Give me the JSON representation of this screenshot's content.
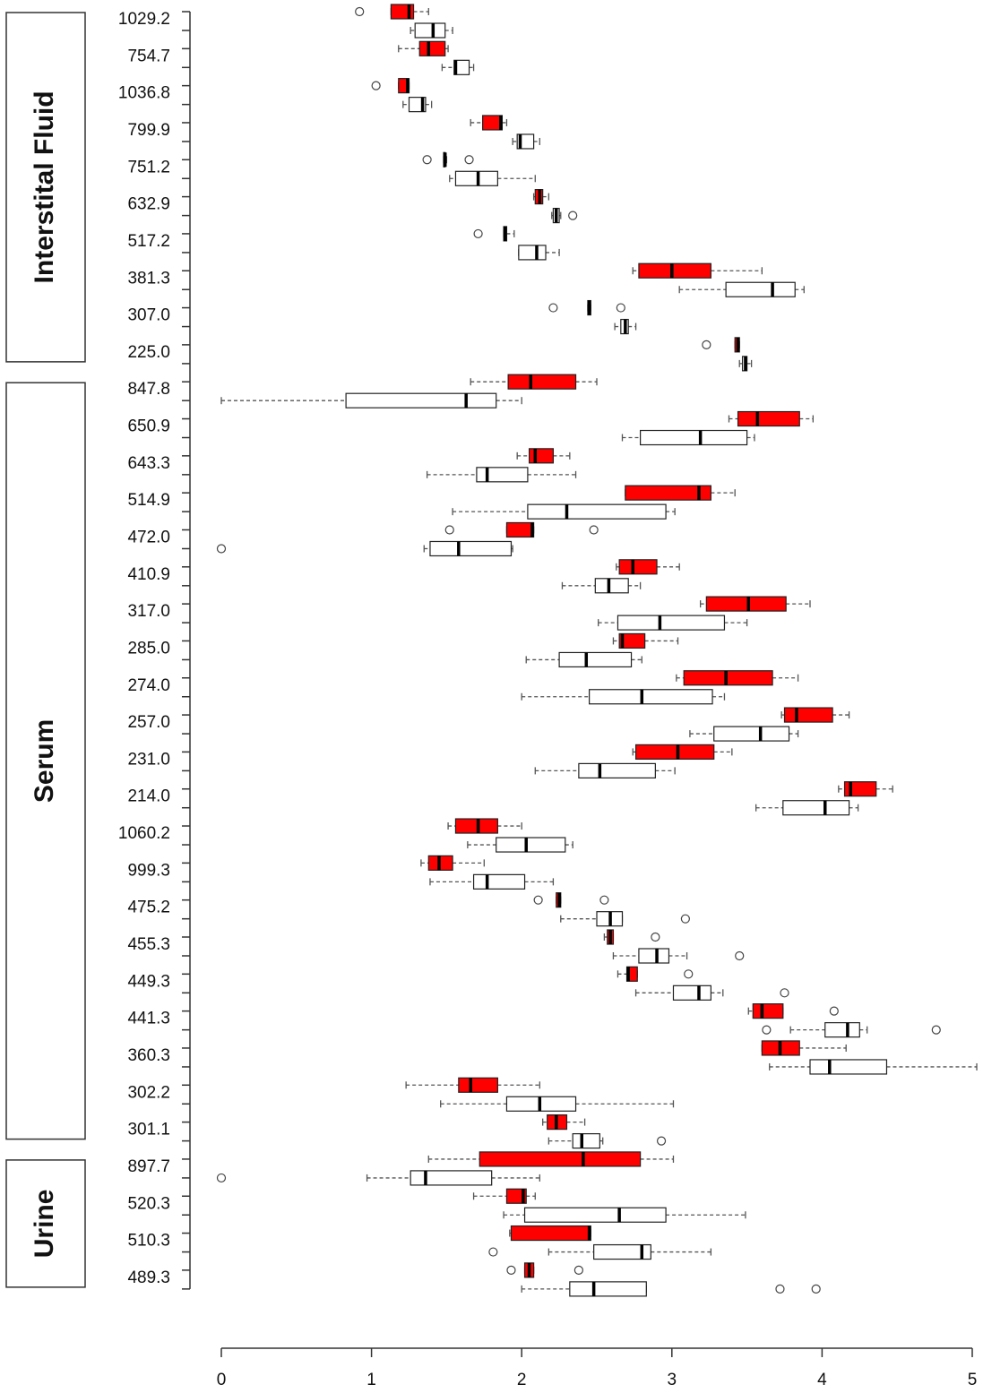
{
  "chart_data": {
    "type": "boxplot",
    "box_colors": [
      "#ff0000",
      "#ffffff"
    ],
    "xlim": [
      0,
      5
    ],
    "xticks": [
      0,
      1,
      2,
      3,
      4,
      5
    ],
    "groups": [
      {
        "label": "Interstital Fluid",
        "categories": [
          {
            "label": "1029.2",
            "boxes": [
              {
                "stats": [
                  1.13,
                  1.13,
                  1.25,
                  1.28,
                  1.38
                ],
                "outliers": [
                  0.92
                ]
              },
              {
                "stats": [
                  1.26,
                  1.29,
                  1.41,
                  1.49,
                  1.54
                ]
              }
            ]
          },
          {
            "label": "754.7",
            "boxes": [
              {
                "stats": [
                  1.18,
                  1.32,
                  1.38,
                  1.49,
                  1.51
                ]
              },
              {
                "stats": [
                  1.47,
                  1.55,
                  1.56,
                  1.65,
                  1.68
                ]
              }
            ]
          },
          {
            "label": "1036.8",
            "boxes": [
              {
                "stats": [
                  1.18,
                  1.18,
                  1.24,
                  1.25,
                  1.25
                ],
                "outliers": [
                  1.03
                ]
              },
              {
                "stats": [
                  1.21,
                  1.25,
                  1.34,
                  1.36,
                  1.4
                ]
              }
            ]
          },
          {
            "label": "799.9",
            "boxes": [
              {
                "stats": [
                  1.66,
                  1.74,
                  1.86,
                  1.87,
                  1.9
                ]
              },
              {
                "stats": [
                  1.94,
                  1.97,
                  1.99,
                  2.08,
                  2.12
                ]
              }
            ]
          },
          {
            "label": "751.2",
            "boxes": [
              {
                "stats": [
                  1.48,
                  1.48,
                  1.49,
                  1.49,
                  1.5
                ],
                "outliers": [
                  1.37,
                  1.65
                ]
              },
              {
                "stats": [
                  1.52,
                  1.56,
                  1.71,
                  1.84,
                  2.09
                ]
              }
            ]
          },
          {
            "label": "632.9",
            "boxes": [
              {
                "stats": [
                  2.08,
                  2.09,
                  2.12,
                  2.14,
                  2.18
                ]
              },
              {
                "stats": [
                  2.2,
                  2.21,
                  2.23,
                  2.25,
                  2.26
                ],
                "outliers": [
                  2.34
                ]
              }
            ]
          },
          {
            "label": "517.2",
            "boxes": [
              {
                "stats": [
                  1.88,
                  1.88,
                  1.89,
                  1.9,
                  1.95
                ],
                "outliers": [
                  1.71
                ]
              },
              {
                "stats": [
                  1.98,
                  1.98,
                  2.1,
                  2.16,
                  2.25
                ]
              }
            ]
          },
          {
            "label": "381.3",
            "boxes": [
              {
                "stats": [
                  2.74,
                  2.78,
                  3.0,
                  3.26,
                  3.6
                ]
              },
              {
                "stats": [
                  3.05,
                  3.36,
                  3.67,
                  3.82,
                  3.88
                ]
              }
            ]
          },
          {
            "label": "307.0",
            "boxes": [
              {
                "stats": [
                  2.44,
                  2.44,
                  2.45,
                  2.46,
                  2.46
                ],
                "outliers": [
                  2.21,
                  2.66
                ]
              },
              {
                "stats": [
                  2.62,
                  2.66,
                  2.69,
                  2.71,
                  2.76
                ]
              }
            ]
          },
          {
            "label": "225.0",
            "boxes": [
              {
                "stats": [
                  3.42,
                  3.42,
                  3.44,
                  3.45,
                  3.45
                ],
                "outliers": [
                  3.23
                ]
              },
              {
                "stats": [
                  3.45,
                  3.47,
                  3.49,
                  3.5,
                  3.53
                ]
              }
            ]
          }
        ]
      },
      {
        "label": "Serum",
        "categories": [
          {
            "label": "847.8",
            "boxes": [
              {
                "stats": [
                  1.66,
                  1.91,
                  2.06,
                  2.36,
                  2.5
                ]
              },
              {
                "stats": [
                  0,
                  0.83,
                  1.63,
                  1.83,
                  2.0
                ]
              }
            ]
          },
          {
            "label": "650.9",
            "boxes": [
              {
                "stats": [
                  3.38,
                  3.44,
                  3.57,
                  3.85,
                  3.94
                ]
              },
              {
                "stats": [
                  2.67,
                  2.79,
                  3.19,
                  3.5,
                  3.55
                ]
              }
            ]
          },
          {
            "label": "643.3",
            "boxes": [
              {
                "stats": [
                  1.97,
                  2.05,
                  2.09,
                  2.21,
                  2.32
                ]
              },
              {
                "stats": [
                  1.37,
                  1.7,
                  1.77,
                  2.04,
                  2.36
                ]
              }
            ]
          },
          {
            "label": "514.9",
            "boxes": [
              {
                "stats": [
                  2.69,
                  2.69,
                  3.18,
                  3.26,
                  3.42
                ]
              },
              {
                "stats": [
                  1.54,
                  2.04,
                  2.3,
                  2.96,
                  3.02
                ]
              }
            ]
          },
          {
            "label": "472.0",
            "boxes": [
              {
                "stats": [
                  1.9,
                  1.9,
                  2.07,
                  2.08,
                  2.08
                ],
                "outliers": [
                  1.52,
                  2.48
                ]
              },
              {
                "stats": [
                  1.35,
                  1.39,
                  1.58,
                  1.93,
                  1.94
                ],
                "outliers": [
                  0
                ]
              }
            ]
          },
          {
            "label": "410.9",
            "boxes": [
              {
                "stats": [
                  2.63,
                  2.65,
                  2.74,
                  2.9,
                  3.05
                ]
              },
              {
                "stats": [
                  2.27,
                  2.49,
                  2.58,
                  2.71,
                  2.79
                ]
              }
            ]
          },
          {
            "label": "317.0",
            "boxes": [
              {
                "stats": [
                  3.19,
                  3.23,
                  3.51,
                  3.76,
                  3.92
                ]
              },
              {
                "stats": [
                  2.51,
                  2.64,
                  2.92,
                  3.35,
                  3.5
                ]
              }
            ]
          },
          {
            "label": "285.0",
            "boxes": [
              {
                "stats": [
                  2.61,
                  2.65,
                  2.67,
                  2.82,
                  3.04
                ]
              },
              {
                "stats": [
                  2.03,
                  2.25,
                  2.43,
                  2.73,
                  2.8
                ]
              }
            ]
          },
          {
            "label": "274.0",
            "boxes": [
              {
                "stats": [
                  3.03,
                  3.08,
                  3.36,
                  3.67,
                  3.84
                ]
              },
              {
                "stats": [
                  2.0,
                  2.45,
                  2.8,
                  3.27,
                  3.35
                ]
              }
            ]
          },
          {
            "label": "257.0",
            "boxes": [
              {
                "stats": [
                  3.73,
                  3.75,
                  3.83,
                  4.07,
                  4.18
                ]
              },
              {
                "stats": [
                  3.12,
                  3.28,
                  3.59,
                  3.78,
                  3.84
                ]
              }
            ]
          },
          {
            "label": "231.0",
            "boxes": [
              {
                "stats": [
                  2.74,
                  2.76,
                  3.04,
                  3.28,
                  3.4
                ]
              },
              {
                "stats": [
                  2.09,
                  2.38,
                  2.52,
                  2.89,
                  3.02
                ]
              }
            ]
          },
          {
            "label": "214.0",
            "boxes": [
              {
                "stats": [
                  4.11,
                  4.15,
                  4.19,
                  4.36,
                  4.47
                ]
              },
              {
                "stats": [
                  3.56,
                  3.74,
                  4.02,
                  4.18,
                  4.24
                ]
              }
            ]
          },
          {
            "label": "1060.2",
            "boxes": [
              {
                "stats": [
                  1.51,
                  1.56,
                  1.71,
                  1.84,
                  2.0
                ]
              },
              {
                "stats": [
                  1.64,
                  1.83,
                  2.03,
                  2.29,
                  2.34
                ]
              }
            ]
          },
          {
            "label": "999.3",
            "boxes": [
              {
                "stats": [
                  1.33,
                  1.38,
                  1.45,
                  1.54,
                  1.75
                ]
              },
              {
                "stats": [
                  1.39,
                  1.68,
                  1.77,
                  2.02,
                  2.21
                ]
              }
            ]
          },
          {
            "label": "475.2",
            "boxes": [
              {
                "stats": [
                  2.23,
                  2.23,
                  2.25,
                  2.26,
                  2.26
                ],
                "outliers": [
                  2.11,
                  2.55
                ]
              },
              {
                "stats": [
                  2.26,
                  2.5,
                  2.59,
                  2.67,
                  2.67
                ],
                "outliers": [
                  3.09
                ]
              }
            ]
          },
          {
            "label": "455.3",
            "boxes": [
              {
                "stats": [
                  2.55,
                  2.57,
                  2.59,
                  2.61,
                  2.61
                ],
                "outliers": [
                  2.89
                ]
              },
              {
                "stats": [
                  2.61,
                  2.78,
                  2.9,
                  2.98,
                  3.1
                ],
                "outliers": [
                  3.45
                ]
              }
            ]
          },
          {
            "label": "449.3",
            "boxes": [
              {
                "stats": [
                  2.64,
                  2.7,
                  2.71,
                  2.77,
                  2.77
                ],
                "outliers": [
                  3.11
                ]
              },
              {
                "stats": [
                  2.76,
                  3.01,
                  3.18,
                  3.26,
                  3.34
                ],
                "outliers": [
                  3.75
                ]
              }
            ]
          },
          {
            "label": "441.3",
            "boxes": [
              {
                "stats": [
                  3.51,
                  3.54,
                  3.6,
                  3.74,
                  3.74
                ],
                "outliers": [
                  4.08
                ]
              },
              {
                "stats": [
                  3.79,
                  4.02,
                  4.17,
                  4.25,
                  4.3
                ],
                "outliers": [
                  3.63,
                  4.76
                ]
              }
            ]
          },
          {
            "label": "360.3",
            "boxes": [
              {
                "stats": [
                  3.6,
                  3.6,
                  3.72,
                  3.85,
                  4.16
                ]
              },
              {
                "stats": [
                  3.65,
                  3.92,
                  4.05,
                  4.43,
                  5.03
                ]
              }
            ]
          },
          {
            "label": "302.2",
            "boxes": [
              {
                "stats": [
                  1.23,
                  1.58,
                  1.66,
                  1.84,
                  2.12
                ]
              },
              {
                "stats": [
                  1.46,
                  1.9,
                  2.12,
                  2.36,
                  3.01
                ]
              }
            ]
          },
          {
            "label": "301.1",
            "boxes": [
              {
                "stats": [
                  2.14,
                  2.17,
                  2.23,
                  2.3,
                  2.42
                ]
              },
              {
                "stats": [
                  2.18,
                  2.34,
                  2.4,
                  2.52,
                  2.54
                ],
                "outliers": [
                  2.93
                ]
              }
            ]
          }
        ]
      },
      {
        "label": "Urine",
        "categories": [
          {
            "label": "897.7",
            "boxes": [
              {
                "stats": [
                  1.38,
                  1.72,
                  2.41,
                  2.79,
                  3.01
                ]
              },
              {
                "stats": [
                  0.97,
                  1.26,
                  1.36,
                  1.8,
                  2.12
                ],
                "outliers": [
                  0
                ]
              }
            ]
          },
          {
            "label": "520.3",
            "boxes": [
              {
                "stats": [
                  1.68,
                  1.9,
                  2.01,
                  2.03,
                  2.09
                ]
              },
              {
                "stats": [
                  1.88,
                  2.02,
                  2.65,
                  2.96,
                  3.49
                ]
              }
            ]
          },
          {
            "label": "510.3",
            "boxes": [
              {
                "stats": [
                  1.92,
                  1.93,
                  2.45,
                  2.46,
                  2.46
                ]
              },
              {
                "stats": [
                  2.18,
                  2.48,
                  2.8,
                  2.86,
                  3.26
                ],
                "outliers": [
                  1.81
                ]
              }
            ]
          },
          {
            "label": "489.3",
            "boxes": [
              {
                "stats": [
                  2.02,
                  2.02,
                  2.05,
                  2.08,
                  2.08
                ],
                "outliers": [
                  1.93,
                  2.38
                ]
              },
              {
                "stats": [
                  2.0,
                  2.32,
                  2.48,
                  2.83,
                  2.83
                ],
                "outliers": [
                  3.72,
                  3.96
                ]
              }
            ]
          }
        ]
      }
    ]
  }
}
